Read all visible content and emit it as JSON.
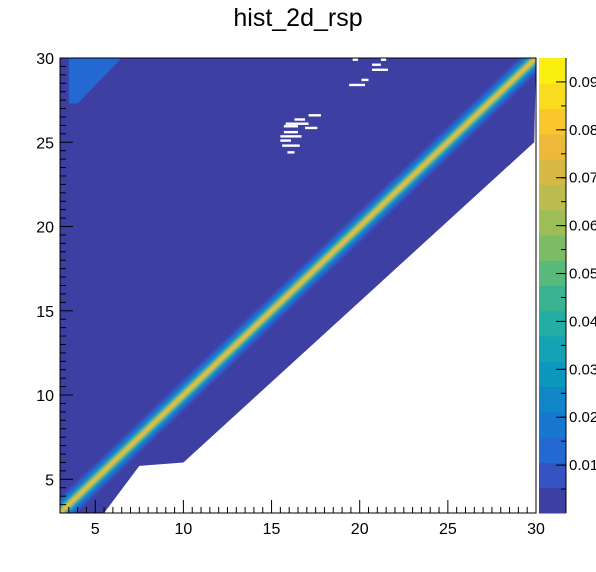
{
  "chart_data": {
    "type": "heatmap",
    "title": "hist_2d_rsp",
    "xlabel": "",
    "ylabel": "",
    "xlim": [
      3,
      30
    ],
    "ylim": [
      3,
      30
    ],
    "x_ticks": [
      5,
      10,
      15,
      20,
      25,
      30
    ],
    "y_ticks": [
      5,
      10,
      15,
      20,
      25,
      30
    ],
    "colorbar": {
      "zlim": [
        0,
        0.095
      ],
      "tick_values": [
        0.01,
        0.02,
        0.03,
        0.04,
        0.05,
        0.06,
        0.07,
        0.08,
        0.09
      ],
      "tick_labels": [
        "0.01",
        "0.02",
        "0.03",
        "0.04",
        "0.05",
        "0.06",
        "0.07",
        "0.08",
        "0.09"
      ],
      "palette": [
        "#3E3FA3",
        "#3553C1",
        "#2468D2",
        "#1878D0",
        "#1187C7",
        "#0C97BD",
        "#14A3B5",
        "#22ADA5",
        "#3AB490",
        "#58B97A",
        "#7BBC65",
        "#9DBD58",
        "#BCBB4E",
        "#D6B945",
        "#EDB93A",
        "#F9C72C",
        "#F9DC20",
        "#F9F00F"
      ]
    },
    "ridge": {
      "description_free": true,
      "peak_value": 0.09,
      "line": "y = x"
    },
    "region": {
      "lower_boundary_points": [
        [
          3,
          3
        ],
        [
          5.5,
          3
        ],
        [
          7.5,
          5.8
        ],
        [
          10,
          6
        ],
        [
          29.9,
          25
        ]
      ],
      "fill_value": 0.001
    },
    "upper_left_patch": {
      "points": [
        [
          3.5,
          30
        ],
        [
          6.5,
          30
        ],
        [
          4,
          27.3
        ],
        [
          3.5,
          27.3
        ]
      ],
      "value": 0.012
    },
    "empty_bins": [
      [
        16.3,
        26.35
      ],
      [
        16.9,
        26.35
      ],
      [
        17.1,
        26.6
      ],
      [
        17.8,
        26.6
      ],
      [
        15.8,
        26.1
      ],
      [
        17.1,
        26.1
      ],
      [
        15.7,
        25.95
      ],
      [
        16.5,
        25.95
      ],
      [
        16.9,
        25.85
      ],
      [
        17.6,
        25.85
      ],
      [
        15.7,
        25.6
      ],
      [
        16.5,
        25.6
      ],
      [
        15.5,
        25.35
      ],
      [
        16.7,
        25.35
      ],
      [
        15.5,
        25.1
      ],
      [
        16.1,
        25.1
      ],
      [
        15.6,
        24.8
      ],
      [
        16.6,
        24.8
      ],
      [
        15.9,
        24.4
      ],
      [
        16.3,
        24.4
      ],
      [
        19.6,
        29.9
      ],
      [
        19.9,
        29.9
      ],
      [
        20.7,
        29.6
      ],
      [
        21.2,
        29.6
      ],
      [
        21.2,
        29.9
      ],
      [
        21.5,
        29.9
      ],
      [
        20.1,
        28.7
      ],
      [
        20.5,
        28.7
      ],
      [
        19.4,
        28.4
      ],
      [
        20.3,
        28.4
      ],
      [
        20.7,
        29.3
      ],
      [
        21.6,
        29.3
      ]
    ]
  }
}
